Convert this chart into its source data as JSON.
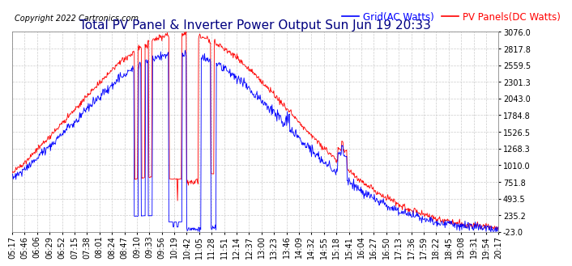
{
  "title": "Total PV Panel & Inverter Power Output Sun Jun 19 20:33",
  "copyright": "Copyright 2022 Cartronics.com",
  "legend_blue": "Grid(AC Watts)",
  "legend_red": "PV Panels(DC Watts)",
  "yticks": [
    3076.0,
    2817.8,
    2559.5,
    2301.3,
    2043.0,
    1784.8,
    1526.5,
    1268.3,
    1010.0,
    751.8,
    493.5,
    235.2,
    -23.0
  ],
  "ymin": -23.0,
  "ymax": 3076.0,
  "xtick_labels": [
    "05:17",
    "05:46",
    "06:06",
    "06:29",
    "06:52",
    "07:15",
    "07:38",
    "08:01",
    "08:24",
    "08:47",
    "09:10",
    "09:33",
    "09:56",
    "10:19",
    "10:42",
    "11:05",
    "11:28",
    "11:51",
    "12:14",
    "12:37",
    "13:00",
    "13:23",
    "13:46",
    "14:09",
    "14:32",
    "14:55",
    "15:18",
    "15:41",
    "16:04",
    "16:27",
    "16:50",
    "17:13",
    "17:36",
    "17:59",
    "18:22",
    "18:45",
    "19:08",
    "19:31",
    "19:54",
    "20:17"
  ],
  "bg_color": "#ffffff",
  "grid_color": "#cccccc",
  "line_blue": "#0000ff",
  "line_red": "#ff0000",
  "title_color": "#000080",
  "title_fontsize": 11,
  "tick_fontsize": 7,
  "legend_fontsize": 8.5,
  "copyright_fontsize": 7
}
